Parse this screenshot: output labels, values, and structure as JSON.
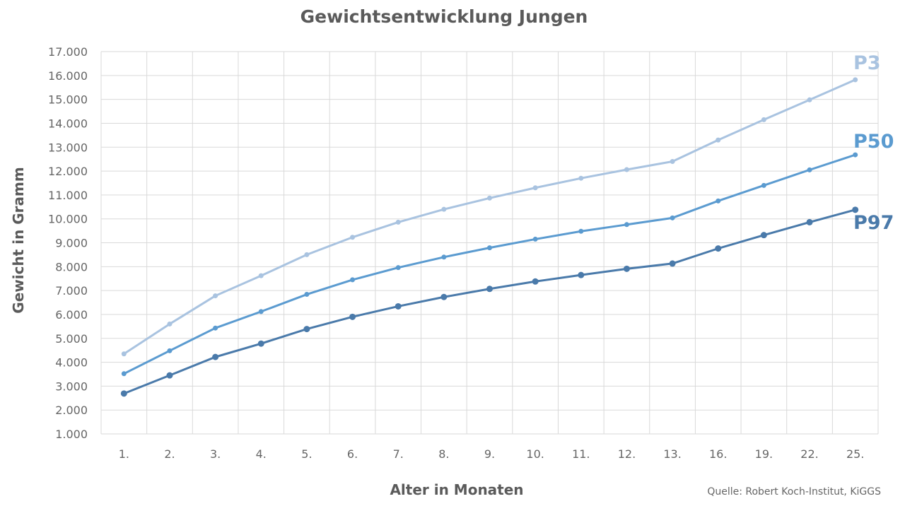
{
  "chart_data": {
    "type": "line",
    "title": "Gewichtsentwicklung Jungen",
    "xlabel": "Alter in Monaten",
    "ylabel": "Gewicht in Gramm",
    "source": "Quelle: Robert Koch-Institut, KiGGS",
    "categories": [
      "1.",
      "2.",
      "3.",
      "4.",
      "5.",
      "6.",
      "7.",
      "8.",
      "9.",
      "10.",
      "11.",
      "12.",
      "13.",
      "16.",
      "19.",
      "22.",
      "25."
    ],
    "yticks": [
      "1.000",
      "2.000",
      "3.000",
      "4.000",
      "5.000",
      "6.000",
      "7.000",
      "8.000",
      "9.000",
      "10.000",
      "11.000",
      "12.000",
      "13.000",
      "14.000",
      "15.000",
      "16.000",
      "17.000"
    ],
    "ylim": [
      1000,
      17000
    ],
    "grid": true,
    "series": [
      {
        "name": "P3",
        "color": "#a9c3e0",
        "values": [
          4350,
          5600,
          6780,
          7620,
          8500,
          9230,
          9860,
          10400,
          10870,
          11300,
          11700,
          12060,
          12400,
          13300,
          14150,
          14980,
          15820
        ]
      },
      {
        "name": "P50",
        "color": "#5b9bd0",
        "values": [
          3520,
          4480,
          5430,
          6120,
          6840,
          7450,
          7960,
          8400,
          8790,
          9150,
          9480,
          9760,
          10040,
          10750,
          11400,
          12050,
          12680
        ]
      },
      {
        "name": "P97",
        "color": "#4a7aaa",
        "values": [
          2690,
          3450,
          4220,
          4780,
          5390,
          5900,
          6340,
          6730,
          7070,
          7380,
          7650,
          7910,
          8130,
          8760,
          9320,
          9860,
          10380
        ]
      }
    ]
  }
}
